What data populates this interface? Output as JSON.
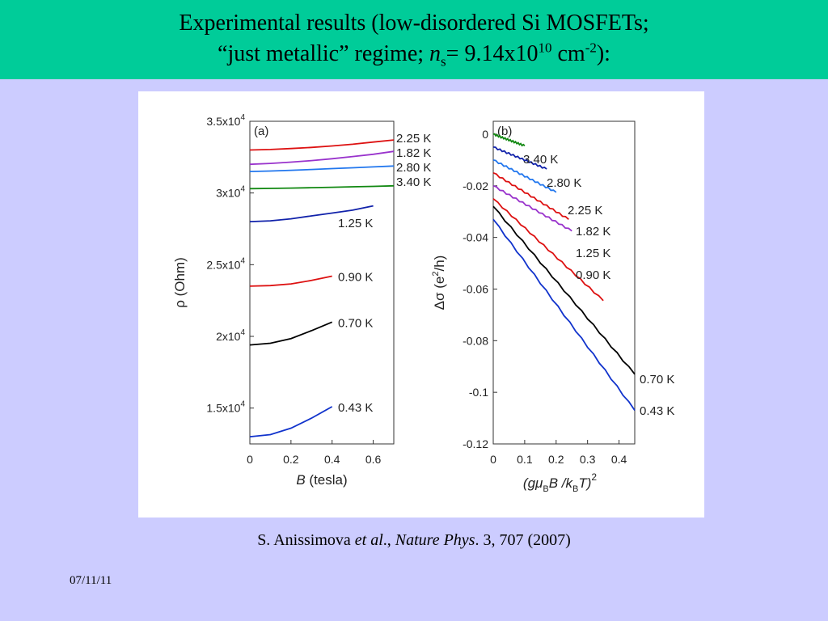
{
  "slide": {
    "title_line1": "Experimental results (low-disordered Si MOSFETs;",
    "title_line2_a": "“just metallic” regime; ",
    "title_line2_n": "n",
    "title_line2_s": "s",
    "title_line2_b": "= 9.14x10",
    "title_line2_exp1": "10",
    "title_line2_c": " cm",
    "title_line2_exp2": "-2",
    "title_line2_d": "):",
    "citation_a": "S. Anissimova ",
    "citation_etal": "et al",
    "citation_b": "., ",
    "citation_journal": "Nature Phys",
    "citation_c": ". 3, 707 (2007)",
    "date": "07/11/11"
  },
  "colors": {
    "title_band": "#00cc99",
    "background": "#ccccff"
  },
  "chart_data": [
    {
      "panel": "(a)",
      "type": "line",
      "xlabel": "B (tesla)",
      "ylabel": "ρ (Ohm)",
      "xlim": [
        0,
        0.7
      ],
      "ylim": [
        12500,
        35000
      ],
      "xticks": [
        "0",
        "0.2",
        "0.4",
        "0.6"
      ],
      "xtick_values": [
        0,
        0.2,
        0.4,
        0.6
      ],
      "yticks": [
        {
          "value": 35000,
          "mantissa": "3.5x10",
          "exp": "4"
        },
        {
          "value": 30000,
          "mantissa": "3x10",
          "exp": "4"
        },
        {
          "value": 25000,
          "mantissa": "2.5x10",
          "exp": "4"
        },
        {
          "value": 20000,
          "mantissa": "2x10",
          "exp": "4"
        },
        {
          "value": 15000,
          "mantissa": "1.5x10",
          "exp": "4"
        }
      ],
      "series": [
        {
          "name": "2.25 K",
          "color": "#dd1111",
          "x": [
            0,
            0.1,
            0.2,
            0.3,
            0.4,
            0.5,
            0.6,
            0.7
          ],
          "y": [
            33000,
            33030,
            33100,
            33180,
            33280,
            33400,
            33550,
            33700
          ]
        },
        {
          "name": "1.82 K",
          "color": "#9933cc",
          "x": [
            0,
            0.1,
            0.2,
            0.3,
            0.4,
            0.5,
            0.6,
            0.7
          ],
          "y": [
            32000,
            32060,
            32150,
            32260,
            32390,
            32540,
            32700,
            32900
          ]
        },
        {
          "name": "2.80 K",
          "color": "#2277ee",
          "x": [
            0,
            0.1,
            0.2,
            0.3,
            0.4,
            0.5,
            0.6,
            0.7
          ],
          "y": [
            31500,
            31530,
            31580,
            31640,
            31700,
            31760,
            31820,
            31880
          ]
        },
        {
          "name": "3.40 K",
          "color": "#118811",
          "x": [
            0,
            0.1,
            0.2,
            0.3,
            0.4,
            0.5,
            0.6,
            0.7
          ],
          "y": [
            30300,
            30320,
            30340,
            30370,
            30400,
            30430,
            30460,
            30500
          ]
        },
        {
          "name": "1.25 K",
          "color": "#1122aa",
          "x": [
            0,
            0.1,
            0.2,
            0.3,
            0.4,
            0.5,
            0.6
          ],
          "y": [
            28000,
            28060,
            28200,
            28400,
            28600,
            28800,
            29100
          ]
        },
        {
          "name": "0.90 K",
          "color": "#dd1111",
          "x": [
            0,
            0.1,
            0.2,
            0.3,
            0.4
          ],
          "y": [
            23500,
            23540,
            23660,
            23900,
            24200
          ]
        },
        {
          "name": "0.70 K",
          "color": "#000000",
          "x": [
            0,
            0.1,
            0.2,
            0.3,
            0.4
          ],
          "y": [
            19400,
            19520,
            19850,
            20400,
            21000
          ]
        },
        {
          "name": "0.43 K",
          "color": "#1133cc",
          "x": [
            0,
            0.1,
            0.2,
            0.3,
            0.4
          ],
          "y": [
            13000,
            13150,
            13600,
            14300,
            15100
          ]
        }
      ]
    },
    {
      "panel": "(b)",
      "type": "line",
      "xlabel_parts": {
        "a": "(gμ",
        "b": "B",
        "c": "B /k",
        "d": "B",
        "e": "T)",
        "f": "2"
      },
      "ylabel_parts": {
        "a": "Δσ (e",
        "b": "2",
        "c": "/h)"
      },
      "xlim": [
        0,
        0.45
      ],
      "ylim": [
        -0.12,
        0.005
      ],
      "xticks": [
        "0",
        "0.1",
        "0.2",
        "0.3",
        "0.4"
      ],
      "xtick_values": [
        0,
        0.1,
        0.2,
        0.3,
        0.4
      ],
      "yticks": [
        "0",
        "-0.02",
        "-0.04",
        "-0.06",
        "-0.08",
        "-0.1",
        "-0.12"
      ],
      "ytick_values": [
        0,
        -0.02,
        -0.04,
        -0.06,
        -0.08,
        -0.1,
        -0.12
      ],
      "series": [
        {
          "name": "3.40 K",
          "color": "#118811",
          "x": [
            0,
            0.1
          ],
          "y": [
            0,
            -0.0045
          ]
        },
        {
          "name": "2.80 K",
          "color": "#1122aa",
          "x": [
            0,
            0.17
          ],
          "y": [
            -0.005,
            -0.0135
          ]
        },
        {
          "name": "2.25 K",
          "color": "#2277ee",
          "x": [
            0,
            0.2
          ],
          "y": [
            -0.01,
            -0.0225
          ]
        },
        {
          "name": "1.82 K",
          "color": "#dd1111",
          "x": [
            0,
            0.24
          ],
          "y": [
            -0.015,
            -0.033
          ]
        },
        {
          "name": "1.25 K",
          "color": "#9933cc",
          "x": [
            0,
            0.25
          ],
          "y": [
            -0.02,
            -0.0375
          ]
        },
        {
          "name": "0.90 K",
          "color": "#dd1111",
          "x": [
            0,
            0.35
          ],
          "y": [
            -0.025,
            -0.0645
          ]
        },
        {
          "name": "0.70 K",
          "color": "#000000",
          "x": [
            0,
            0.45
          ],
          "y": [
            -0.028,
            -0.093
          ]
        },
        {
          "name": "0.43 K",
          "color": "#1133cc",
          "x": [
            0,
            0.45
          ],
          "y": [
            -0.033,
            -0.107
          ]
        }
      ],
      "label_positions": [
        {
          "name": "3.40 K",
          "at_x": 0.1,
          "at_y": -0.0045
        },
        {
          "name": "2.80 K",
          "at_x": 0.17,
          "at_y": -0.0135
        },
        {
          "name": "2.25 K",
          "at_x": 0.2,
          "at_y": -0.0225
        },
        {
          "name": "1.82 K",
          "at_x": 0.24,
          "at_y": -0.033
        },
        {
          "name": "1.25 K",
          "at_x": 0.25,
          "at_y": -0.0375
        },
        {
          "name": "0.90 K",
          "at_x": 0.25,
          "at_y": -0.051
        },
        {
          "name": "0.70 K",
          "at_x": 0.45,
          "at_y": -0.093
        },
        {
          "name": "0.43 K",
          "at_x": 0.45,
          "at_y": -0.107
        }
      ]
    }
  ]
}
